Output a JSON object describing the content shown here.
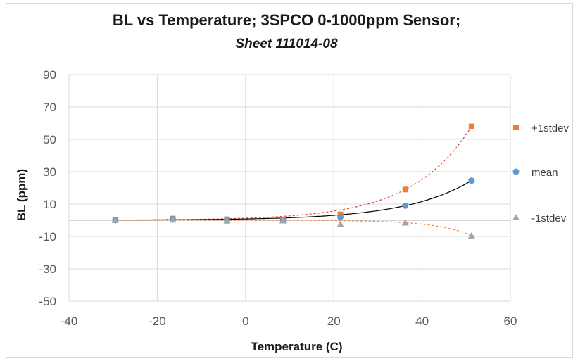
{
  "chart_data": {
    "type": "scatter",
    "title": "BL vs Temperature; 3SPCO 0-1000ppm Sensor;",
    "subtitle": "Sheet 111014-08",
    "xlabel": "Temperature (C)",
    "ylabel": "BL (ppm)",
    "xlim": [
      -40,
      60
    ],
    "ylim": [
      -50,
      90
    ],
    "x_ticks": [
      -40,
      -20,
      0,
      20,
      40,
      60
    ],
    "y_ticks": [
      -50,
      -30,
      -10,
      10,
      30,
      50,
      70,
      90
    ],
    "x_tick_labels": [
      "-40",
      "-20",
      "0",
      "20",
      "40",
      "60"
    ],
    "y_tick_labels": [
      "-50",
      "-30",
      "-10",
      "10",
      "30",
      "50",
      "70",
      "90"
    ],
    "grid": true,
    "legend_position": "right",
    "series": [
      {
        "name": "+1stdev",
        "color": "#ed7d31",
        "marker": "square",
        "x": [
          -29.5,
          -16.5,
          -4.2,
          8.5,
          21.5,
          36.2,
          51.2
        ],
        "y": [
          0,
          1,
          0.6,
          0.5,
          3.6,
          19,
          58
        ],
        "trendline_color": "#e8382a"
      },
      {
        "name": "mean",
        "color": "#5b9bd5",
        "marker": "circle",
        "x": [
          -29.5,
          -16.5,
          -4.2,
          8.5,
          21.5,
          36.2,
          51.2
        ],
        "y": [
          0,
          0.8,
          0.3,
          0.2,
          2,
          9,
          24.5
        ],
        "trendline_color": "#000000"
      },
      {
        "name": "-1stdev",
        "color": "#a5a5a5",
        "marker": "triangle",
        "x": [
          -29.5,
          -16.5,
          -4.2,
          8.5,
          21.5,
          36.2,
          51.2
        ],
        "y": [
          0,
          0.3,
          -0.3,
          -0.2,
          -2.5,
          -1.5,
          -9.5
        ],
        "trendline_color": "#ed7d31"
      }
    ]
  }
}
